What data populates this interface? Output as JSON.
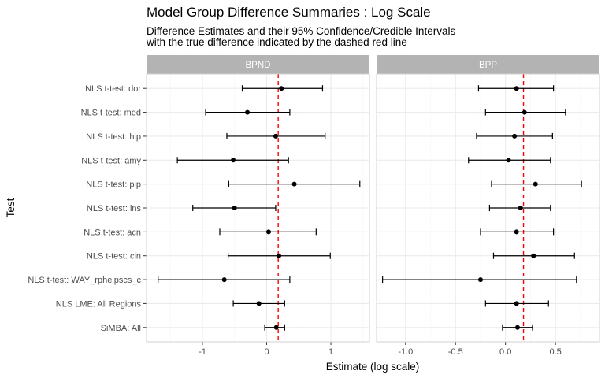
{
  "chart_data": {
    "type": "forest",
    "title": "Model Group Difference Summaries : Log Scale",
    "subtitle_lines": [
      "Difference Estimates and their 95% Confidence/Credible Intervals",
      "with the true difference indicated by the dashed red line"
    ],
    "xlabel": "Estimate (log scale)",
    "ylabel": "Test",
    "categories": [
      "NLS t-test: dor",
      "NLS t-test: med",
      "NLS t-test: hip",
      "NLS t-test: amy",
      "NLS t-test: pip",
      "NLS t-test: ins",
      "NLS t-test: acn",
      "NLS t-test: cin",
      "NLS t-test: WAY_rphelpscs_c",
      "NLS LME: All Regions",
      "SiMBA: All"
    ],
    "reference_line": {
      "value": 0.18,
      "color": "#ff0000",
      "style": "dashed"
    },
    "grid": true,
    "panels": [
      {
        "name": "BPND",
        "xlim": [
          -1.87,
          1.6
        ],
        "xticks": [
          -1,
          0,
          1
        ],
        "xtick_labels": [
          "-1",
          "0",
          "1"
        ],
        "estimates": [
          0.23,
          -0.3,
          0.14,
          -0.52,
          0.43,
          -0.5,
          0.03,
          0.19,
          -0.66,
          -0.12,
          0.15
        ],
        "lower": [
          -0.38,
          -0.95,
          -0.62,
          -1.39,
          -0.59,
          -1.15,
          -0.73,
          -0.6,
          -1.69,
          -0.52,
          -0.03
        ],
        "upper": [
          0.87,
          0.36,
          0.91,
          0.34,
          1.45,
          0.14,
          0.77,
          0.99,
          0.36,
          0.28,
          0.28
        ]
      },
      {
        "name": "BPP",
        "xlim": [
          -1.29,
          0.94
        ],
        "xticks": [
          -1,
          -0.5,
          0,
          0.5
        ],
        "xtick_labels": [
          "-1.0",
          "-0.5",
          "0.0",
          "0.5"
        ],
        "estimates": [
          0.11,
          0.19,
          0.09,
          0.03,
          0.3,
          0.15,
          0.11,
          0.28,
          -0.25,
          0.11,
          0.12
        ],
        "lower": [
          -0.27,
          -0.2,
          -0.29,
          -0.37,
          -0.14,
          -0.16,
          -0.25,
          -0.12,
          -1.23,
          -0.2,
          -0.03
        ],
        "upper": [
          0.48,
          0.6,
          0.47,
          0.45,
          0.76,
          0.45,
          0.48,
          0.69,
          0.71,
          0.43,
          0.27
        ]
      }
    ]
  },
  "colors": {
    "strip_bg": "#b3b3b3",
    "strip_text": "#ffffff",
    "panel_border": "#d0d0d0",
    "grid_major": "#ebebeb",
    "grid_minor": "#f5f5f5",
    "ink": "#000000",
    "axis_text": "#4d4d4d"
  }
}
